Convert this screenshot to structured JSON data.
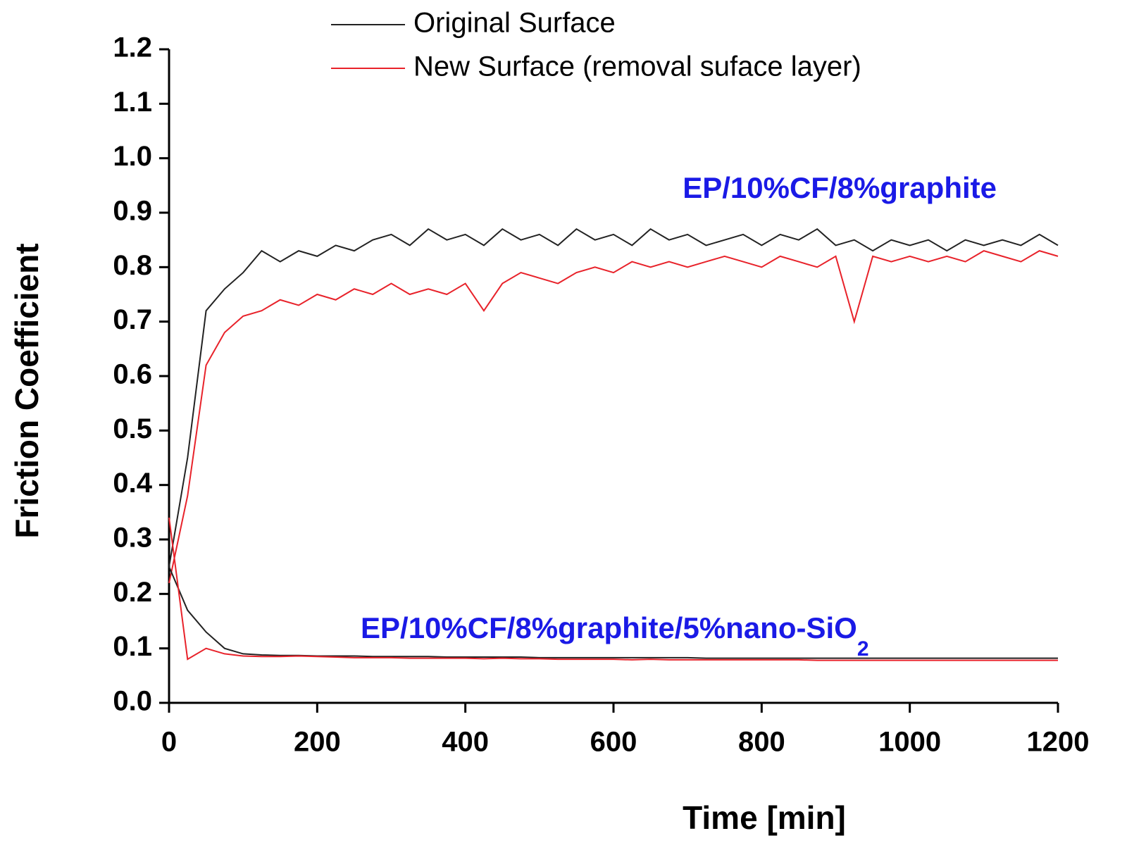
{
  "chart_data": {
    "type": "line",
    "ylabel": "Friction Coefficient",
    "xlabel": "Time [min]",
    "annotations": [
      {
        "text": "EP/10%CF/8%graphite"
      },
      {
        "text": "EP/10%CF/8%graphite/5%nano-SiO",
        "subscript": "2"
      }
    ],
    "x": [
      0,
      25,
      50,
      75,
      100,
      125,
      150,
      175,
      200,
      225,
      250,
      275,
      300,
      325,
      350,
      375,
      400,
      425,
      450,
      475,
      500,
      525,
      550,
      575,
      600,
      625,
      650,
      675,
      700,
      725,
      750,
      775,
      800,
      825,
      850,
      875,
      900,
      925,
      950,
      975,
      1000,
      1025,
      1050,
      1075,
      1100,
      1125,
      1150,
      1175,
      1200
    ],
    "series": [
      {
        "name": "Original Surface",
        "color": "#222222",
        "values": [
          0.25,
          0.45,
          0.72,
          0.76,
          0.79,
          0.83,
          0.81,
          0.83,
          0.82,
          0.84,
          0.83,
          0.85,
          0.86,
          0.84,
          0.87,
          0.85,
          0.86,
          0.84,
          0.87,
          0.85,
          0.86,
          0.84,
          0.87,
          0.85,
          0.86,
          0.84,
          0.87,
          0.85,
          0.86,
          0.84,
          0.85,
          0.86,
          0.84,
          0.86,
          0.85,
          0.87,
          0.84,
          0.85,
          0.83,
          0.85,
          0.84,
          0.85,
          0.83,
          0.85,
          0.84,
          0.85,
          0.84,
          0.86,
          0.84
        ]
      },
      {
        "name": "New Surface (removal suface layer)",
        "color": "#e8222a",
        "values": [
          0.22,
          0.38,
          0.62,
          0.68,
          0.71,
          0.72,
          0.74,
          0.73,
          0.75,
          0.74,
          0.76,
          0.75,
          0.77,
          0.75,
          0.76,
          0.75,
          0.77,
          0.72,
          0.77,
          0.79,
          0.78,
          0.77,
          0.79,
          0.8,
          0.79,
          0.81,
          0.8,
          0.81,
          0.8,
          0.81,
          0.82,
          0.81,
          0.8,
          0.82,
          0.81,
          0.8,
          0.82,
          0.7,
          0.82,
          0.81,
          0.82,
          0.81,
          0.82,
          0.81,
          0.83,
          0.82,
          0.81,
          0.83,
          0.82
        ]
      },
      {
        "color": "#222222",
        "values": [
          0.25,
          0.17,
          0.13,
          0.1,
          0.09,
          0.088,
          0.087,
          0.087,
          0.086,
          0.086,
          0.086,
          0.085,
          0.085,
          0.085,
          0.085,
          0.084,
          0.084,
          0.084,
          0.084,
          0.084,
          0.083,
          0.083,
          0.083,
          0.083,
          0.083,
          0.083,
          0.083,
          0.083,
          0.083,
          0.082,
          0.082,
          0.082,
          0.082,
          0.082,
          0.082,
          0.082,
          0.082,
          0.082,
          0.082,
          0.082,
          0.082,
          0.082,
          0.082,
          0.082,
          0.082,
          0.082,
          0.082,
          0.082,
          0.082
        ]
      },
      {
        "color": "#e8222a",
        "values": [
          0.34,
          0.08,
          0.1,
          0.09,
          0.086,
          0.085,
          0.085,
          0.086,
          0.085,
          0.084,
          0.083,
          0.083,
          0.083,
          0.082,
          0.082,
          0.082,
          0.082,
          0.081,
          0.082,
          0.081,
          0.081,
          0.08,
          0.08,
          0.08,
          0.08,
          0.079,
          0.08,
          0.079,
          0.079,
          0.079,
          0.079,
          0.079,
          0.079,
          0.079,
          0.079,
          0.078,
          0.078,
          0.078,
          0.078,
          0.078,
          0.078,
          0.078,
          0.078,
          0.078,
          0.078,
          0.078,
          0.078,
          0.078,
          0.078
        ]
      }
    ],
    "xlim": [
      0,
      1200
    ],
    "xticks": [
      0,
      200,
      400,
      600,
      800,
      1000,
      1200
    ],
    "ylim": [
      0,
      1.2
    ],
    "yticks": [
      {
        "value": 0,
        "label": "0.0"
      },
      0.1,
      0.2,
      0.3,
      0.4,
      0.5,
      0.6,
      0.7,
      0.8,
      0.9,
      {
        "value": 1,
        "label": "1.0"
      },
      1.1,
      1.2
    ],
    "grid": false
  }
}
